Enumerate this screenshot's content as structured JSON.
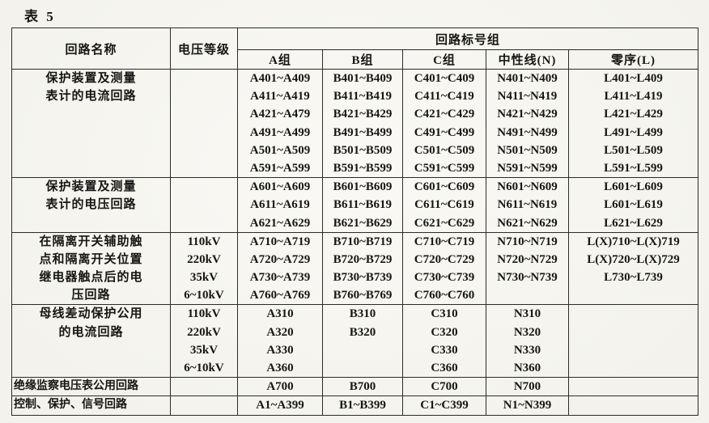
{
  "page": {
    "title": "表 5"
  },
  "colors": {
    "paper": "#f7f6f1",
    "ink": "#161614",
    "border": "#2c2b28"
  },
  "table": {
    "header": {
      "col_circuit_name": "回路名称",
      "col_voltage": "电压等级",
      "col_group": "回路标号组",
      "subcols": [
        "A组",
        "B组",
        "C组",
        "中性线(N)",
        "零序(L)"
      ]
    },
    "blocks": [
      {
        "name": [
          "保护装置及测量",
          "表计的电流回路"
        ],
        "voltage": [],
        "cols": {
          "a": [
            "A401~A409",
            "A411~A419",
            "A421~A479",
            "A491~A499",
            "A501~A509",
            "A591~A599"
          ],
          "b": [
            "B401~B409",
            "B411~B419",
            "B421~B429",
            "B491~B499",
            "B501~B509",
            "B591~B599"
          ],
          "c": [
            "C401~C409",
            "C411~C419",
            "C421~C429",
            "C491~C499",
            "C501~C509",
            "C591~C599"
          ],
          "n": [
            "N401~N409",
            "N411~N419",
            "N421~N429",
            "N491~N499",
            "N501~N509",
            "N591~N599"
          ],
          "l": [
            "L401~L409",
            "L411~L419",
            "L421~L429",
            "L491~L499",
            "L501~L509",
            "L591~L599"
          ]
        }
      },
      {
        "name": [
          "保护装置及测量",
          "表计的电压回路"
        ],
        "voltage": [],
        "cols": {
          "a": [
            "A601~A609",
            "A611~A619",
            "A621~A629"
          ],
          "b": [
            "B601~B609",
            "B611~B619",
            "B621~B629"
          ],
          "c": [
            "C601~C609",
            "C611~C619",
            "C621~C629"
          ],
          "n": [
            "N601~N609",
            "N611~N619",
            "N621~N629"
          ],
          "l": [
            "L601~L609",
            "L601~L619",
            "L621~L629"
          ]
        }
      },
      {
        "name": [
          "在隔离开关辅助触",
          "点和隔离开关位置",
          "继电器触点后的电",
          "压回路"
        ],
        "voltage": [
          "110kV",
          "220kV",
          "35kV",
          "6~10kV"
        ],
        "cols": {
          "a": [
            "A710~A719",
            "A720~A729",
            "A730~A739",
            "A760~A769"
          ],
          "b": [
            "B710~B719",
            "B720~B729",
            "B730~B739",
            "B760~B769"
          ],
          "c": [
            "C710~C719",
            "C720~C729",
            "C730~C739",
            "C760~C760"
          ],
          "n": [
            "N710~N719",
            "N720~N729",
            "N730~N739",
            ""
          ],
          "l": [
            "L(X)710~L(X)719",
            "L(X)720~L(X)729",
            "L730~L739",
            ""
          ]
        }
      },
      {
        "name": [
          "母线差动保护公用",
          "的电流回路"
        ],
        "voltage": [
          "110kV",
          "220kV",
          "35kV",
          "6~10kV"
        ],
        "cols": {
          "a": [
            "A310",
            "A320",
            "A330",
            "A360"
          ],
          "b": [
            "B310",
            "B320",
            "",
            ""
          ],
          "c": [
            "C310",
            "C320",
            "C330",
            "C360"
          ],
          "n": [
            "N310",
            "N320",
            "N330",
            "N360"
          ],
          "l": [
            "",
            "",
            "",
            ""
          ]
        }
      },
      {
        "name": [
          "绝缘监察电压表公用回路"
        ],
        "name_align": "left",
        "voltage": [],
        "cols": {
          "a": [
            "A700"
          ],
          "b": [
            "B700"
          ],
          "c": [
            "C700"
          ],
          "n": [
            "N700"
          ],
          "l": [
            ""
          ]
        }
      },
      {
        "name": [
          "控制、保护、信号回路"
        ],
        "name_align": "left",
        "voltage": [],
        "cols": {
          "a": [
            "A1~A399"
          ],
          "b": [
            "B1~B399"
          ],
          "c": [
            "C1~C399"
          ],
          "n": [
            "N1~N399"
          ],
          "l": [
            ""
          ]
        }
      }
    ]
  }
}
